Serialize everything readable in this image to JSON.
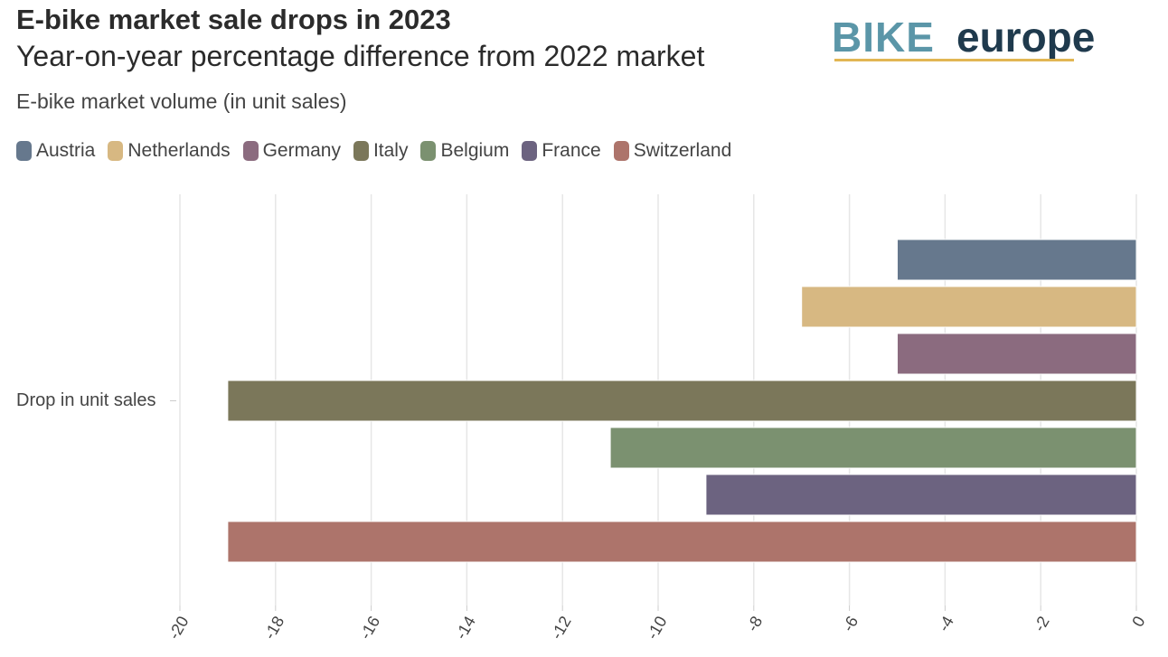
{
  "header": {
    "title": "E-bike market sale drops in 2023",
    "subtitle": "Year-on-year percentage difference from 2022 market",
    "description": "E-bike market volume (in unit sales)"
  },
  "logo": {
    "part1": "BIKE",
    "part2": "europe",
    "color_part1": "#5b96a8",
    "color_part2": "#1f3a4d",
    "underline_color": "#e2b653"
  },
  "chart_data": {
    "type": "bar",
    "orientation": "horizontal",
    "categories": [
      "Drop in unit sales"
    ],
    "series": [
      {
        "name": "Austria",
        "values": [
          -5
        ],
        "color": "#66788d"
      },
      {
        "name": "Netherlands",
        "values": [
          -7
        ],
        "color": "#d7b882"
      },
      {
        "name": "Germany",
        "values": [
          -5
        ],
        "color": "#8b6b7f"
      },
      {
        "name": "Italy",
        "values": [
          -19
        ],
        "color": "#7b775a"
      },
      {
        "name": "Belgium",
        "values": [
          -11
        ],
        "color": "#7b9170"
      },
      {
        "name": "France",
        "values": [
          -9
        ],
        "color": "#6c6380"
      },
      {
        "name": "Switzerland",
        "values": [
          -19
        ],
        "color": "#ad746b"
      }
    ],
    "xlim": [
      -20,
      0
    ],
    "xticks": [
      -20,
      -18,
      -16,
      -14,
      -12,
      -10,
      -8,
      -6,
      -4,
      -2,
      0
    ],
    "grid": true,
    "legend": "top-left"
  }
}
